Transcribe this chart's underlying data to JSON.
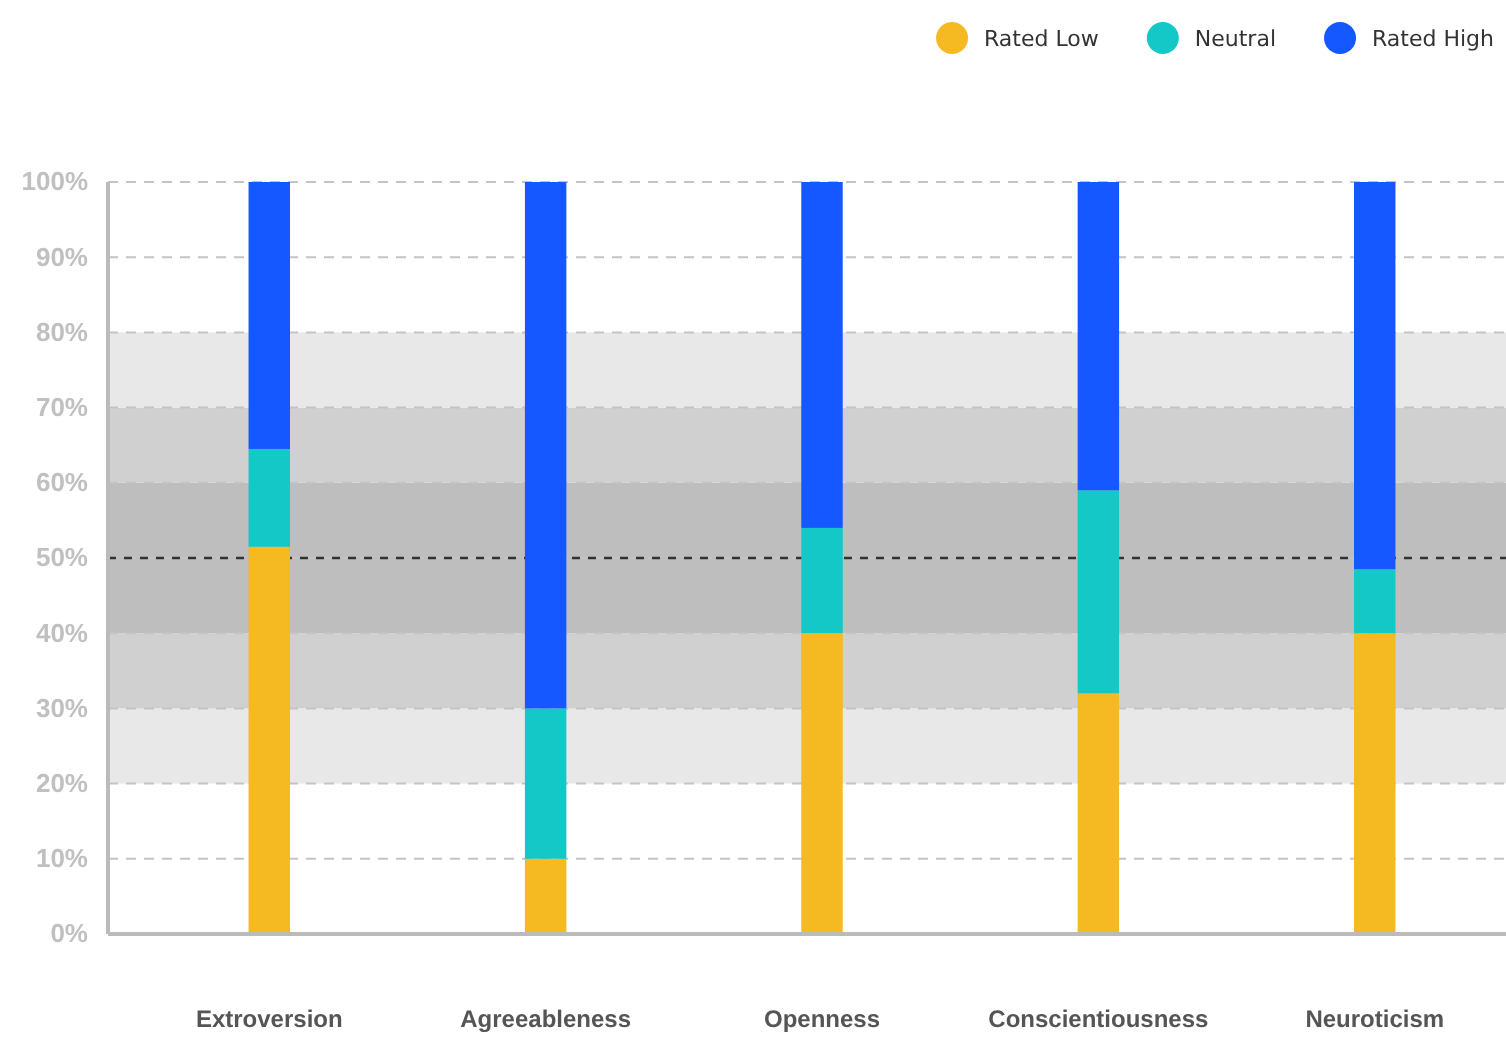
{
  "chart_data": {
    "type": "bar",
    "stacked": true,
    "categories": [
      "Extroversion",
      "Agreeableness",
      "Openness",
      "Conscientiousness",
      "Neuroticism"
    ],
    "series": [
      {
        "name": "Rated Low",
        "color": "#f5b921",
        "values": [
          51.5,
          10,
          40,
          32,
          40
        ]
      },
      {
        "name": "Neutral",
        "color": "#14c8c8",
        "values": [
          13,
          20,
          14,
          27,
          8.5
        ]
      },
      {
        "name": "Rated High",
        "color": "#1658ff",
        "values": [
          35.5,
          70,
          46,
          41,
          51.5
        ]
      }
    ],
    "ylim": [
      0,
      100
    ],
    "yticks": [
      {
        "value": 0,
        "label": "0%"
      },
      {
        "value": 10,
        "label": "10%"
      },
      {
        "value": 20,
        "label": "20%"
      },
      {
        "value": 30,
        "label": "30%"
      },
      {
        "value": 40,
        "label": "40%"
      },
      {
        "value": 50,
        "label": "50%"
      },
      {
        "value": 60,
        "label": "60%"
      },
      {
        "value": 70,
        "label": "70%"
      },
      {
        "value": 80,
        "label": "80%"
      },
      {
        "value": 90,
        "label": "90%"
      },
      {
        "value": 100,
        "label": "100%"
      }
    ],
    "grid": "y",
    "legend": "top right",
    "bands": [
      {
        "axis": "y",
        "from": 20,
        "to": 30,
        "color": "#e8e8e8"
      },
      {
        "axis": "y",
        "from": 30,
        "to": 40,
        "color": "#d0d0d0"
      },
      {
        "axis": "y",
        "from": 40,
        "to": 60,
        "color": "#bebebe"
      },
      {
        "axis": "y",
        "from": 60,
        "to": 70,
        "color": "#d0d0d0"
      },
      {
        "axis": "y",
        "from": 70,
        "to": 80,
        "color": "#e8e8e8"
      }
    ],
    "ref_lines": [
      {
        "axis": "y",
        "value": 50,
        "color": "#333333",
        "line_style": "dashed"
      }
    ]
  }
}
